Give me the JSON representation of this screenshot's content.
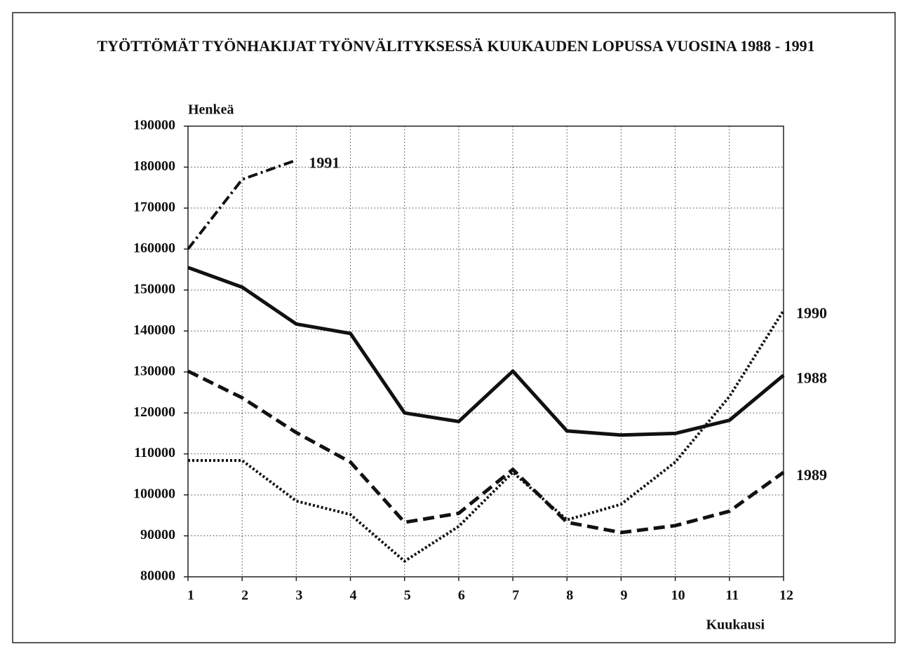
{
  "chart_data": {
    "type": "line",
    "title": "TYÖTTÖMÄT TYÖNHAKIJAT TYÖNVÄLITYKSESSÄ KUUKAUDEN LOPUSSA VUOSINA 1988 - 1991",
    "y_label": "Henkeä",
    "x_label": "Kuukausi",
    "x": [
      1,
      2,
      3,
      4,
      5,
      6,
      7,
      8,
      9,
      10,
      11,
      12
    ],
    "xlim": [
      1,
      12
    ],
    "xticks": [
      1,
      2,
      3,
      4,
      5,
      6,
      7,
      8,
      9,
      10,
      11,
      12
    ],
    "ylim": [
      80000,
      190000
    ],
    "yticks": [
      80000,
      90000,
      100000,
      110000,
      120000,
      130000,
      140000,
      150000,
      160000,
      170000,
      180000,
      190000
    ],
    "grid": true,
    "series": [
      {
        "name": "1988",
        "color": "#111111",
        "style": "solid",
        "values": [
          155500,
          150700,
          141700,
          139400,
          120000,
          117900,
          130200,
          115600,
          114600,
          115000,
          118200,
          129200
        ]
      },
      {
        "name": "1989",
        "color": "#111111",
        "style": "dashed",
        "values": [
          130200,
          123700,
          115200,
          108000,
          93300,
          95500,
          106200,
          93300,
          90800,
          92500,
          96000,
          105500
        ]
      },
      {
        "name": "1990",
        "color": "#111111",
        "style": "dotted",
        "values": [
          108400,
          108400,
          98500,
          95200,
          83800,
          92300,
          105500,
          93900,
          97700,
          108000,
          124000,
          145000
        ]
      },
      {
        "name": "1991",
        "color": "#111111",
        "style": "dashdot",
        "values": [
          160000,
          177000,
          181700,
          null,
          null,
          null,
          null,
          null,
          null,
          null,
          null,
          null
        ]
      }
    ]
  }
}
